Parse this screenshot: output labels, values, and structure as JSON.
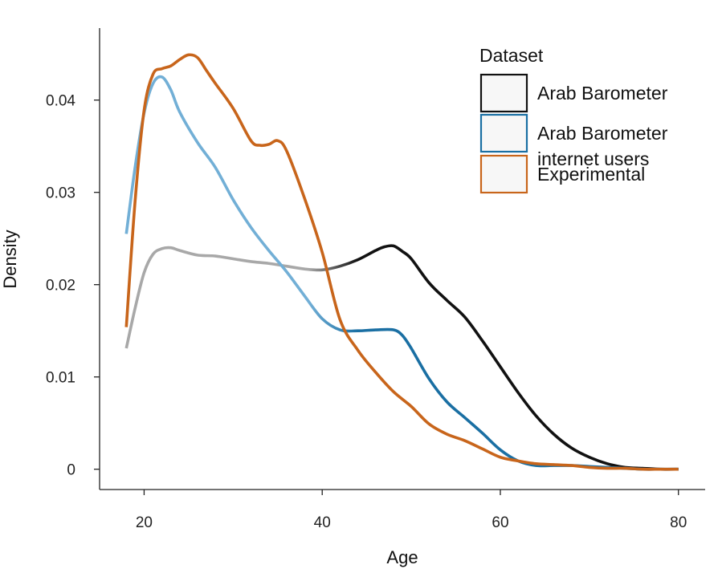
{
  "chart_data": {
    "type": "line",
    "xlabel": "Age",
    "ylabel": "Density",
    "xlim": [
      15,
      83
    ],
    "ylim": [
      -0.0022,
      0.0478
    ],
    "xticks": [
      20,
      40,
      60,
      80
    ],
    "xtick_labels": [
      "20",
      "40",
      "60",
      "80"
    ],
    "yticks": [
      0,
      0.01,
      0.02,
      0.03,
      0.04
    ],
    "ytick_labels": [
      "0",
      "0.01",
      "0.02",
      "0.03",
      "0.04"
    ],
    "grid": false,
    "legend": {
      "title": "Dataset",
      "position": "top-right",
      "entries": [
        {
          "label_lines": [
            "Arab Barometer"
          ],
          "color": "#111111"
        },
        {
          "label_lines": [
            "Arab Barometer",
            "internet users"
          ],
          "color": "#1a6fa3"
        },
        {
          "label_lines": [
            "Experimental"
          ],
          "color": "#c8651b"
        }
      ]
    },
    "series": [
      {
        "name": "Arab Barometer",
        "color": "#111111",
        "faded_color": "#a8a8a8",
        "x": [
          18,
          19,
          20,
          21,
          22,
          23,
          24,
          26,
          28,
          30,
          32,
          34,
          36,
          38,
          40,
          42,
          44,
          46,
          47,
          48,
          49,
          50,
          52,
          54,
          56,
          58,
          60,
          62,
          64,
          66,
          68,
          70,
          72,
          74,
          76,
          78,
          80
        ],
        "y": [
          0.0131,
          0.0175,
          0.0213,
          0.0233,
          0.0239,
          0.024,
          0.0237,
          0.0232,
          0.0231,
          0.0228,
          0.0225,
          0.0223,
          0.022,
          0.0217,
          0.0216,
          0.022,
          0.0227,
          0.0237,
          0.0241,
          0.0242,
          0.0236,
          0.0228,
          0.0202,
          0.0183,
          0.0165,
          0.0139,
          0.0111,
          0.0083,
          0.0058,
          0.0038,
          0.0023,
          0.0013,
          0.0006,
          0.0002,
          0.0001,
          0.0,
          0.0
        ]
      },
      {
        "name": "Arab Barometer internet users",
        "color": "#1a6fa3",
        "faded_color": "#72afd6",
        "x": [
          18,
          19,
          20,
          21,
          22,
          23,
          24,
          26,
          28,
          30,
          32,
          34,
          36,
          38,
          40,
          42,
          44,
          46,
          48,
          49,
          50,
          52,
          54,
          56,
          58,
          60,
          62,
          64,
          66,
          68,
          70,
          72,
          74,
          76,
          78,
          80
        ],
        "y": [
          0.0255,
          0.0328,
          0.0386,
          0.0418,
          0.0425,
          0.0411,
          0.0387,
          0.0354,
          0.0327,
          0.0292,
          0.0262,
          0.0237,
          0.0214,
          0.0188,
          0.0163,
          0.0151,
          0.015,
          0.0151,
          0.0151,
          0.0145,
          0.0131,
          0.0098,
          0.0073,
          0.0056,
          0.0039,
          0.0021,
          0.0009,
          0.0004,
          0.0004,
          0.0004,
          0.0003,
          0.0002,
          0.0001,
          0.0,
          0.0,
          0.0
        ]
      },
      {
        "name": "Experimental",
        "color": "#c8651b",
        "faded_color": "#c8651b",
        "x": [
          18,
          19,
          20,
          21,
          22,
          23,
          24,
          25,
          26,
          27,
          28,
          30,
          32,
          33,
          34,
          35,
          36,
          38,
          40,
          42,
          44,
          46,
          48,
          50,
          52,
          54,
          56,
          58,
          60,
          62,
          64,
          66,
          68,
          70,
          72,
          74,
          76,
          78,
          80
        ],
        "y": [
          0.0154,
          0.0292,
          0.0389,
          0.0428,
          0.0434,
          0.0437,
          0.0444,
          0.0449,
          0.0446,
          0.0432,
          0.0418,
          0.0391,
          0.0356,
          0.0351,
          0.0352,
          0.0356,
          0.0345,
          0.0294,
          0.0235,
          0.0162,
          0.0129,
          0.0105,
          0.0084,
          0.0068,
          0.0049,
          0.0038,
          0.0031,
          0.0022,
          0.0013,
          0.0009,
          0.0006,
          0.0005,
          0.0004,
          0.0002,
          0.0001,
          0.0001,
          0.0,
          0.0,
          0.0
        ]
      }
    ]
  }
}
